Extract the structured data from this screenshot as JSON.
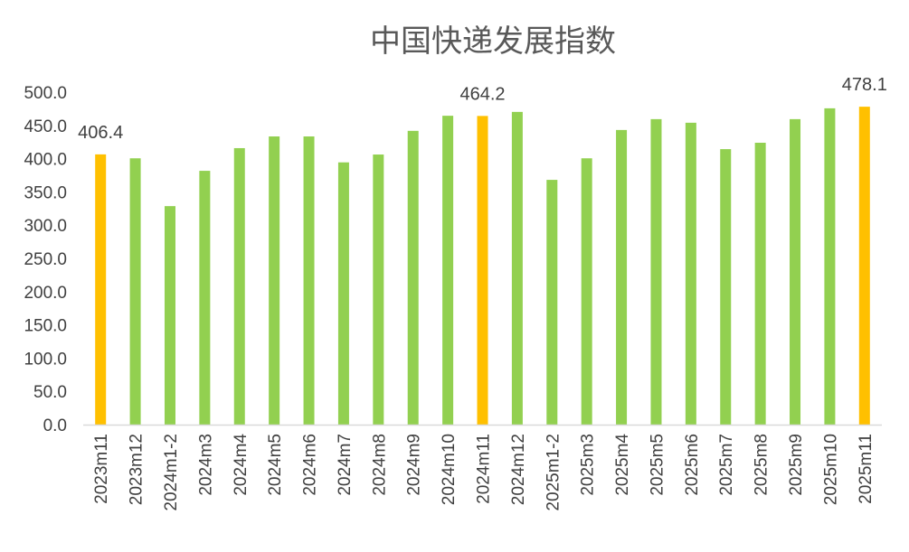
{
  "chart_data": {
    "type": "bar",
    "title": "中国快递发展指数",
    "xlabel": "",
    "ylabel": "",
    "ylim": [
      0,
      500
    ],
    "yticks": [
      "0.0",
      "50.0",
      "100.0",
      "150.0",
      "200.0",
      "250.0",
      "300.0",
      "350.0",
      "400.0",
      "450.0",
      "500.0"
    ],
    "grid": false,
    "legend": "none",
    "categories": [
      "2023m11",
      "2023m12",
      "2024m1-2",
      "2024m3",
      "2024m4",
      "2024m5",
      "2024m6",
      "2024m7",
      "2024m8",
      "2024m9",
      "2024m10",
      "2024m11",
      "2024m12",
      "2025m1-2",
      "2025m3",
      "2025m4",
      "2025m5",
      "2025m6",
      "2025m7",
      "2025m8",
      "2025m9",
      "2025m10",
      "2025m11"
    ],
    "values": [
      406.4,
      400.5,
      328.6,
      381.7,
      415.8,
      433.4,
      433.4,
      394.4,
      406.2,
      441.8,
      464.5,
      464.2,
      470.3,
      368.1,
      400.5,
      443.1,
      459.4,
      454.0,
      414.3,
      423.9,
      459.4,
      475.7,
      478.1
    ],
    "labels": [
      {
        "index": 0,
        "text": "406.4"
      },
      {
        "index": 11,
        "text": "464.2"
      },
      {
        "index": 22,
        "text": "478.1"
      }
    ],
    "colors": {
      "default_bar": "#92D050",
      "highlight_bar": "#FFC000",
      "axis": "#D9D9D9"
    },
    "highlight_indices": [
      0,
      11,
      22
    ]
  }
}
